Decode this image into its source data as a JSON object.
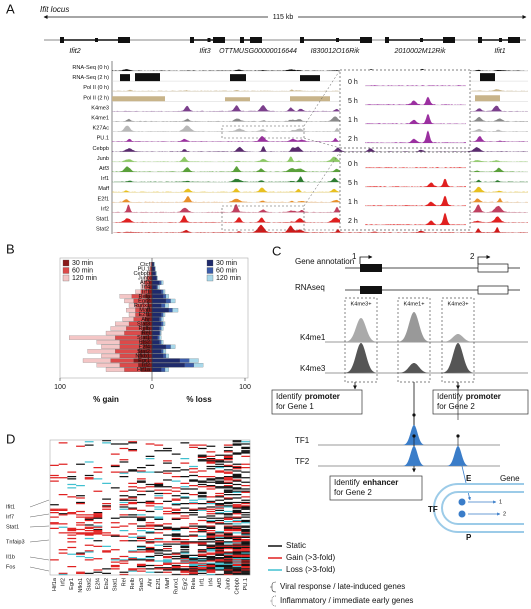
{
  "panel_a": {
    "label": "A",
    "title": "Ifit locus",
    "scale": "115 kb",
    "genes": [
      "Ifit2",
      "Ifit3",
      "OTTMUSG00000016644",
      "I830012O16Rik",
      "2010002M12Rik",
      "Ifit1"
    ],
    "tracks": [
      {
        "name": "RNA-Seq (0 h)",
        "color": "#111111"
      },
      {
        "name": "RNA-Seq (2 h)",
        "color": "#111111"
      },
      {
        "name": "Pol II (0 h)",
        "color": "#c8b48a"
      },
      {
        "name": "Pol II (2 h)",
        "color": "#c8b48a"
      },
      {
        "name": "K4me3",
        "color": "#7b3f8c"
      },
      {
        "name": "K4me1",
        "color": "#8a8a8a"
      },
      {
        "name": "K27Ac",
        "color": "#b8b8b8"
      },
      {
        "name": "PU.1",
        "color": "#9b30a0"
      },
      {
        "name": "Cebpb",
        "color": "#5a2a6e"
      },
      {
        "name": "Junb",
        "color": "#8cc864"
      },
      {
        "name": "Atf3",
        "color": "#5aa03a"
      },
      {
        "name": "Irf1",
        "color": "#2e7d32"
      },
      {
        "name": "Maff",
        "color": "#e8c020"
      },
      {
        "name": "E2f1",
        "color": "#e8902a"
      },
      {
        "name": "Irf2",
        "color": "#c04060"
      },
      {
        "name": "Stat1",
        "color": "#e02020"
      },
      {
        "name": "Stat2",
        "color": "#d01818"
      }
    ],
    "inset_top": {
      "rows": [
        "0 h",
        "5 h",
        "1 h",
        "2 h"
      ],
      "color": "#9b30a0"
    },
    "inset_bottom": {
      "rows": [
        "0 h",
        "5 h",
        "1 h",
        "2 h"
      ],
      "color": "#e02020"
    }
  },
  "chart_data": {
    "type": "bar",
    "label": "B",
    "categories": [
      "Ctcf",
      "PU.1",
      "Cebpb",
      "Junb",
      "Atf3",
      "Irf4",
      "Irf1",
      "Rela",
      "Egr2",
      "Runx1",
      "Maff",
      "E2f1",
      "Ahr",
      "Stat3",
      "Relb",
      "Rel",
      "Stat1",
      "Ets2",
      "E2f4",
      "Stat2",
      "Nfkb1",
      "Egr1",
      "Irf2",
      "Hif1a"
    ],
    "series": [
      {
        "name": "30 min",
        "color": "#8b1a1a",
        "values": [
          0,
          1,
          1,
          2,
          3,
          3,
          4,
          8,
          6,
          5,
          6,
          6,
          8,
          10,
          10,
          12,
          10,
          12,
          10,
          15,
          15,
          20,
          15,
          12
        ]
      },
      {
        "name": "60 min",
        "color": "#dc4a4a",
        "values": [
          1,
          2,
          3,
          5,
          8,
          8,
          12,
          22,
          20,
          18,
          18,
          18,
          20,
          25,
          28,
          30,
          40,
          35,
          35,
          40,
          35,
          45,
          35,
          30
        ]
      },
      {
        "name": "120 min",
        "color": "#f4c6c6",
        "values": [
          2,
          3,
          5,
          8,
          12,
          12,
          18,
          35,
          30,
          25,
          28,
          25,
          32,
          40,
          45,
          50,
          90,
          60,
          55,
          70,
          55,
          75,
          60,
          50
        ]
      },
      {
        "name": "30 min",
        "color": "#1f2a6b",
        "axis": "x2",
        "values": [
          2,
          3,
          4,
          5,
          8,
          5,
          10,
          12,
          15,
          10,
          18,
          10,
          8,
          10,
          8,
          8,
          6,
          8,
          15,
          10,
          12,
          30,
          35,
          10
        ]
      },
      {
        "name": "60 min",
        "color": "#3b5ba9",
        "axis": "x2",
        "values": [
          2,
          3,
          3,
          5,
          10,
          6,
          12,
          15,
          20,
          14,
          22,
          12,
          10,
          12,
          10,
          9,
          8,
          10,
          20,
          12,
          15,
          40,
          45,
          14
        ]
      },
      {
        "name": "120 min",
        "color": "#a8d8ea",
        "axis": "x2",
        "values": [
          3,
          4,
          5,
          6,
          12,
          8,
          14,
          18,
          25,
          18,
          28,
          14,
          12,
          14,
          12,
          10,
          10,
          12,
          25,
          15,
          18,
          50,
          55,
          18
        ]
      }
    ],
    "xlim": [
      100,
      0
    ],
    "xticks": [
      100,
      0
    ],
    "x2lim": [
      0,
      100
    ],
    "x2ticks": [
      100
    ],
    "xlabel": "% gain",
    "x2label": "% loss"
  },
  "panel_c": {
    "label": "C",
    "gene_annotation": "Gene annotation",
    "gene_1": "1",
    "gene_2": "2",
    "rnaseq": "RNAseq",
    "box_labels": [
      "K4me3+",
      "K4me1+",
      "K4me3+"
    ],
    "tracks": [
      "K4me1",
      "K4me3"
    ],
    "promoter_1": {
      "pre": "Identify",
      "bold": "promoter",
      "post": "for Gene 1"
    },
    "promoter_2": {
      "pre": "Identify",
      "bold": "promoter",
      "post": "for Gene 2"
    },
    "tf_tracks": [
      "TF1",
      "TF2"
    ],
    "enhancer": {
      "pre": "Identify",
      "bold": "enhancer",
      "post": "for Gene 2"
    },
    "loop": {
      "e": "E",
      "gene": "Gene",
      "tf": "TF",
      "p": "P",
      "arrow_1": "1",
      "arrow_2": "2"
    }
  },
  "panel_d": {
    "label": "D",
    "columns": [
      "Hif1a",
      "Irf2",
      "Egr1",
      "Nfkb1",
      "Stat2",
      "E2f4",
      "Ets2",
      "Stat1",
      "Rel",
      "Relb",
      "Stat3",
      "Ahr",
      "E2f1",
      "Maff",
      "Runx1",
      "Egr2",
      "Rela",
      "Irf1",
      "Irf4",
      "Atf3",
      "Junb",
      "Cebpb",
      "PU.1"
    ],
    "rows": [
      "Ifit1",
      "Irf7",
      "Stat1",
      "Tnfaip3",
      "Il1b",
      "Fos"
    ],
    "legend": [
      {
        "name": "Static",
        "color": "#111111"
      },
      {
        "name": "Gain (>3-fold)",
        "color": "#e02020"
      },
      {
        "name": "Loss (>3-fold)",
        "color": "#40c0d0"
      }
    ],
    "groups": [
      "Viral response / late-induced genes",
      "Inflammatory / immediate early genes"
    ]
  }
}
